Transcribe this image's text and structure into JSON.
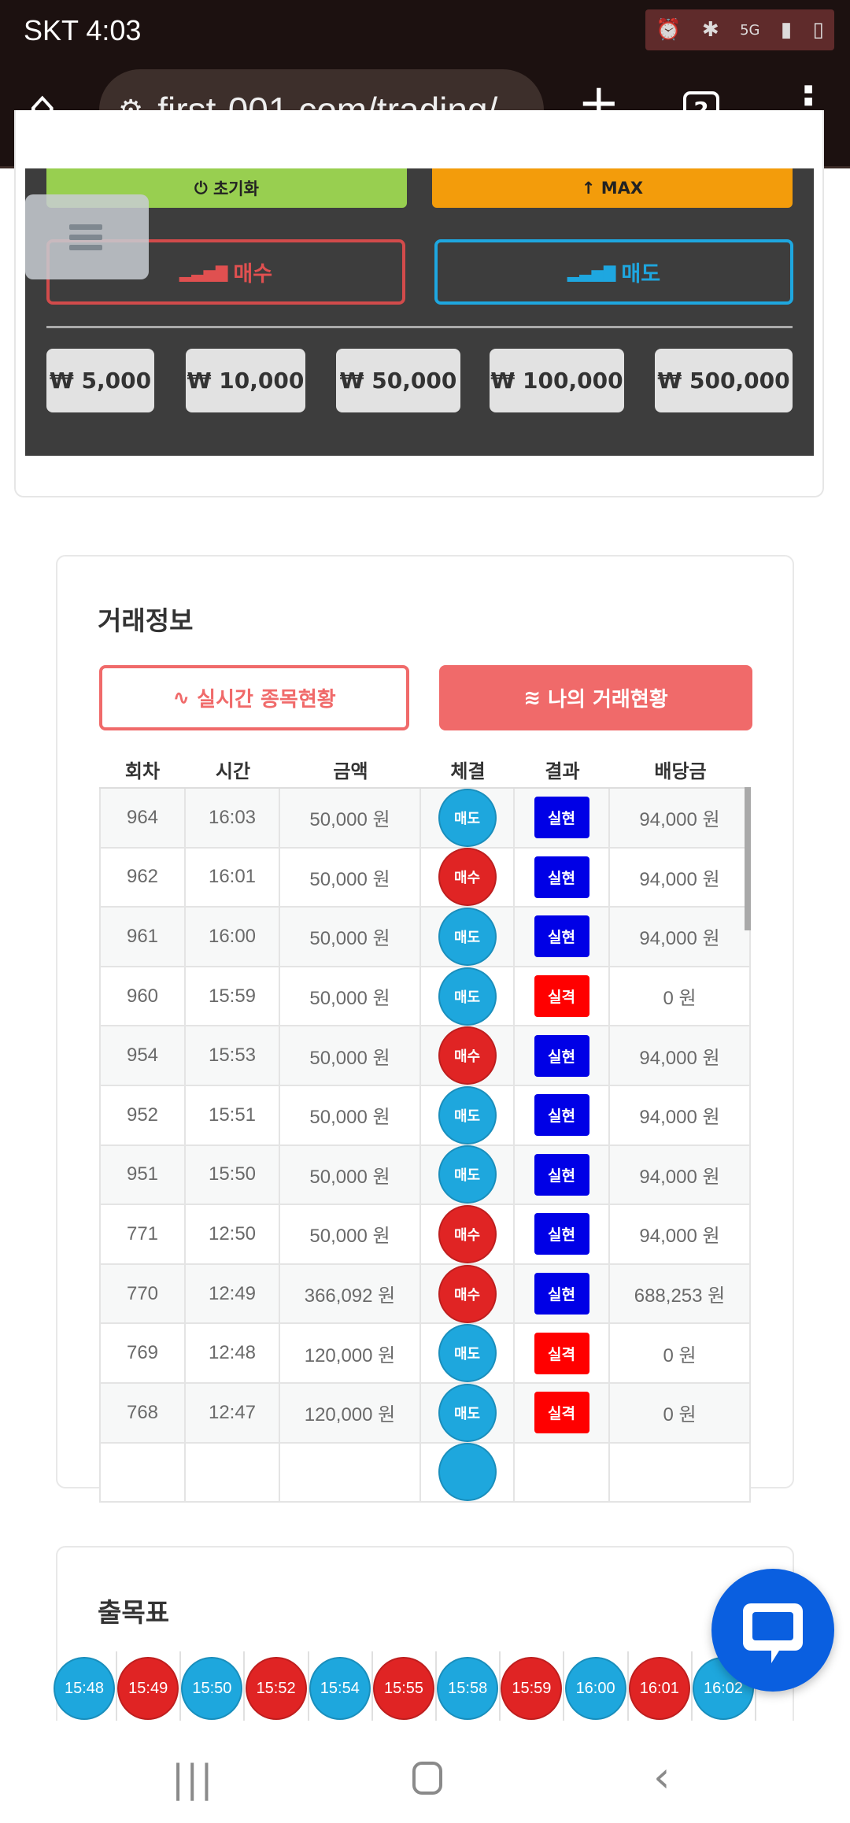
{
  "status_bar": {
    "carrier_time": "SKT 4:03",
    "icons": [
      "alarm-icon",
      "bluetooth-icon",
      "5g-icon",
      "signal-icon",
      "battery-icon"
    ]
  },
  "browser": {
    "url": "first-001.com/trading/",
    "tab_count": "2"
  },
  "controls": {
    "reset_label": "초기화",
    "max_label": "MAX",
    "buy_label": "매수",
    "sell_label": "매도",
    "amounts": [
      "₩ 5,000",
      "₩ 10,000",
      "₩ 50,000",
      "₩ 100,000",
      "₩ 500,000"
    ]
  },
  "trade_info": {
    "title": "거래정보",
    "tab_realtime": "실시간 종목현황",
    "tab_my": "나의 거래현황",
    "columns": [
      "회차",
      "시간",
      "금액",
      "체결",
      "결과",
      "배당금"
    ],
    "rows": [
      {
        "round": "964",
        "time": "16:03",
        "amount": "50,000 원",
        "side": "매도",
        "result": "실현",
        "payout": "94,000 원"
      },
      {
        "round": "962",
        "time": "16:01",
        "amount": "50,000 원",
        "side": "매수",
        "result": "실현",
        "payout": "94,000 원"
      },
      {
        "round": "961",
        "time": "16:00",
        "amount": "50,000 원",
        "side": "매도",
        "result": "실현",
        "payout": "94,000 원"
      },
      {
        "round": "960",
        "time": "15:59",
        "amount": "50,000 원",
        "side": "매도",
        "result": "실격",
        "payout": "0 원"
      },
      {
        "round": "954",
        "time": "15:53",
        "amount": "50,000 원",
        "side": "매수",
        "result": "실현",
        "payout": "94,000 원"
      },
      {
        "round": "952",
        "time": "15:51",
        "amount": "50,000 원",
        "side": "매도",
        "result": "실현",
        "payout": "94,000 원"
      },
      {
        "round": "951",
        "time": "15:50",
        "amount": "50,000 원",
        "side": "매도",
        "result": "실현",
        "payout": "94,000 원"
      },
      {
        "round": "771",
        "time": "12:50",
        "amount": "50,000 원",
        "side": "매수",
        "result": "실현",
        "payout": "94,000 원"
      },
      {
        "round": "770",
        "time": "12:49",
        "amount": "366,092 원",
        "side": "매수",
        "result": "실현",
        "payout": "688,253 원"
      },
      {
        "round": "769",
        "time": "12:48",
        "amount": "120,000 원",
        "side": "매도",
        "result": "실격",
        "payout": "0 원"
      },
      {
        "round": "768",
        "time": "12:47",
        "amount": "120,000 원",
        "side": "매도",
        "result": "실격",
        "payout": "0 원"
      }
    ]
  },
  "bead_table": {
    "title": "출목표",
    "beads": [
      {
        "time": "15:48",
        "side": "sell"
      },
      {
        "time": "15:49",
        "side": "buy"
      },
      {
        "time": "15:50",
        "side": "sell"
      },
      {
        "time": "15:52",
        "side": "buy"
      },
      {
        "time": "15:54",
        "side": "sell"
      },
      {
        "time": "15:55",
        "side": "buy"
      },
      {
        "time": "15:58",
        "side": "sell"
      },
      {
        "time": "15:59",
        "side": "buy"
      },
      {
        "time": "16:00",
        "side": "sell"
      },
      {
        "time": "16:01",
        "side": "buy"
      },
      {
        "time": "16:02",
        "side": "sell"
      }
    ]
  },
  "colors": {
    "buy": "#e02424",
    "sell": "#1ea7dd",
    "win": "#0000e6",
    "lose": "#ff0000",
    "accent": "#f06a6a",
    "reset": "#98cf50",
    "max": "#f39c0b"
  }
}
